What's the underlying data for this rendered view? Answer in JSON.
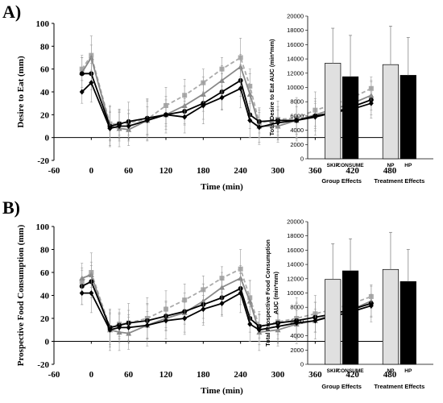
{
  "panels": {
    "A": {
      "label": "A)"
    },
    "B": {
      "label": "B)"
    }
  },
  "chart_data": [
    {
      "type": "line",
      "panel": "A",
      "ylabel": "Desire to Eat (mm)",
      "xlabel": "Time (min)",
      "xlim": [
        -60,
        480
      ],
      "ylim": [
        -20,
        100
      ],
      "xticks": [
        -60,
        0,
        60,
        120,
        180,
        240,
        300,
        360,
        420,
        480
      ],
      "yticks": [
        -20,
        0,
        20,
        40,
        60,
        80,
        100
      ],
      "x": [
        -15,
        0,
        30,
        45,
        60,
        90,
        120,
        150,
        180,
        210,
        240,
        255,
        270,
        300,
        330,
        360,
        390,
        420,
        450
      ],
      "series": [
        {
          "color": "#aaaaaa",
          "dash": "dashed",
          "marker": "square",
          "values": [
            60,
            72,
            12,
            12,
            13,
            16,
            28,
            37,
            48,
            60,
            70,
            45,
            13,
            16,
            17,
            24,
            29,
            35,
            43
          ]
        },
        {
          "color": "#888888",
          "dash": "solid",
          "marker": "triangle",
          "values": [
            57,
            70,
            10,
            8,
            7,
            15,
            20,
            28,
            38,
            50,
            62,
            38,
            10,
            10,
            15,
            20,
            25,
            30,
            37
          ]
        },
        {
          "color": "#000000",
          "dash": "solid",
          "marker": "circle",
          "values": [
            56,
            56,
            10,
            12,
            14,
            17,
            20,
            23,
            30,
            40,
            50,
            20,
            14,
            15,
            15,
            19,
            22,
            27,
            33
          ]
        },
        {
          "color": "#000000",
          "dash": "solid",
          "marker": "diamond",
          "values": [
            40,
            48,
            8,
            10,
            10,
            15,
            20,
            18,
            28,
            35,
            43,
            15,
            9,
            13,
            15,
            18,
            22,
            25,
            30
          ]
        }
      ]
    },
    {
      "type": "bar",
      "panel": "A",
      "ylabel": "Total Desire to Eat AUC (min*mm)",
      "ylim": [
        0,
        20000
      ],
      "yticks": [
        0,
        2000,
        4000,
        6000,
        8000,
        10000,
        12000,
        14000,
        16000,
        18000,
        20000
      ],
      "categories": [
        "SKIP",
        "CONSUME",
        "NP",
        "HP"
      ],
      "groups": [
        "Group Effects",
        "Treatment Effects"
      ],
      "values": [
        13400,
        11500,
        13200,
        11700
      ],
      "errors": [
        4900,
        5800,
        5400,
        5300
      ],
      "colors": [
        "#e0e0e0",
        "#000000",
        "#e0e0e0",
        "#000000"
      ]
    },
    {
      "type": "line",
      "panel": "B",
      "ylabel": "Prospective Food Consumption (mm)",
      "xlabel": "Time (min)",
      "xlim": [
        -60,
        480
      ],
      "ylim": [
        -20,
        100
      ],
      "xticks": [
        -60,
        0,
        60,
        120,
        180,
        240,
        300,
        360,
        420,
        480
      ],
      "yticks": [
        -20,
        0,
        20,
        40,
        60,
        80,
        100
      ],
      "x": [
        -15,
        0,
        30,
        45,
        60,
        90,
        120,
        150,
        180,
        210,
        240,
        255,
        270,
        300,
        330,
        360,
        390,
        420,
        450
      ],
      "series": [
        {
          "color": "#aaaaaa",
          "dash": "dashed",
          "marker": "square",
          "values": [
            52,
            60,
            12,
            15,
            16,
            20,
            28,
            36,
            45,
            55,
            63,
            38,
            13,
            17,
            20,
            24,
            28,
            33,
            39
          ]
        },
        {
          "color": "#888888",
          "dash": "solid",
          "marker": "triangle",
          "values": [
            55,
            58,
            10,
            8,
            7,
            14,
            20,
            25,
            35,
            47,
            55,
            35,
            8,
            10,
            15,
            18,
            24,
            28,
            35
          ]
        },
        {
          "color": "#000000",
          "dash": "solid",
          "marker": "circle",
          "values": [
            48,
            52,
            12,
            14,
            16,
            18,
            22,
            26,
            32,
            38,
            46,
            20,
            13,
            16,
            18,
            21,
            24,
            28,
            33
          ]
        },
        {
          "color": "#000000",
          "dash": "solid",
          "marker": "diamond",
          "values": [
            42,
            42,
            10,
            12,
            12,
            14,
            18,
            20,
            28,
            33,
            42,
            15,
            10,
            13,
            16,
            18,
            22,
            26,
            31
          ]
        }
      ]
    },
    {
      "type": "bar",
      "panel": "B",
      "ylabel": "Total Prospective Food Consumption AUC (min*mm)",
      "ylabel_lines": [
        "Total Prospective Food Consumption",
        "AUC (min*mm)"
      ],
      "ylim": [
        0,
        20000
      ],
      "yticks": [
        0,
        2000,
        4000,
        6000,
        8000,
        10000,
        12000,
        14000,
        16000,
        18000,
        20000
      ],
      "categories": [
        "SKIP",
        "CONSUME",
        "NP",
        "HP"
      ],
      "groups": [
        "Group Effects",
        "Treatment Effects"
      ],
      "values": [
        11900,
        13100,
        13300,
        11600
      ],
      "errors": [
        5000,
        4500,
        5200,
        4500
      ],
      "colors": [
        "#e0e0e0",
        "#000000",
        "#e0e0e0",
        "#000000"
      ]
    }
  ]
}
